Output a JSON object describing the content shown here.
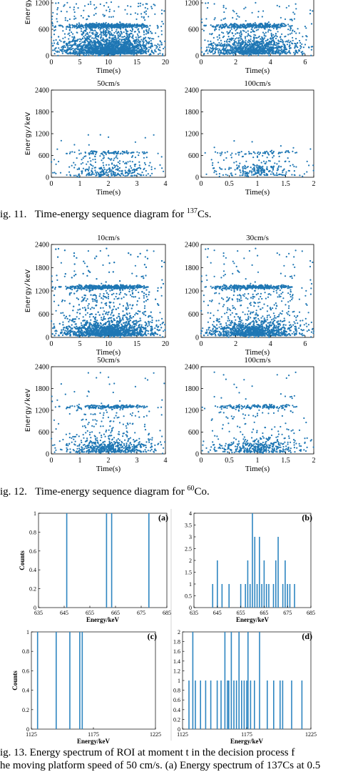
{
  "figures": [
    {
      "caption": {
        "prefix": "ig. 11.",
        "text": "Time-energy sequence diagram for ",
        "isotope_sup": "137",
        "isotope": "Cs."
      },
      "panels": [
        {
          "title": "",
          "xlabel": "Time(s)",
          "ylabel": "Energy/keV",
          "xticks": [
            "0",
            "5",
            "10",
            "15",
            "20"
          ],
          "yticks": [
            "0",
            "600",
            "1200"
          ],
          "xlim": [
            0,
            20
          ],
          "ylim": [
            0,
            2400
          ]
        },
        {
          "title": "",
          "xlabel": "Time(s)",
          "ylabel": "",
          "xticks": [
            "0",
            "2",
            "4",
            "6"
          ],
          "yticks": [
            "0",
            "600",
            "1200"
          ],
          "xlim": [
            0,
            6.5
          ],
          "ylim": [
            0,
            2400
          ]
        },
        {
          "title": "50cm/s",
          "xlabel": "Time(s)",
          "ylabel": "Energy/keV",
          "xticks": [
            "0",
            "1",
            "2",
            "3",
            "4"
          ],
          "yticks": [
            "0",
            "600",
            "1200",
            "1800",
            "2400"
          ],
          "xlim": [
            0,
            4
          ],
          "ylim": [
            0,
            2400
          ]
        },
        {
          "title": "100cm/s",
          "xlabel": "Time(s)",
          "ylabel": "",
          "xticks": [
            "0",
            "0.5",
            "1",
            "1.5",
            "2"
          ],
          "yticks": [
            "0",
            "600",
            "1200",
            "1800",
            "2400"
          ],
          "xlim": [
            0,
            2
          ],
          "ylim": [
            0,
            2400
          ]
        }
      ]
    },
    {
      "caption": {
        "prefix": "ig. 12.",
        "text": "Time-energy sequence diagram for ",
        "isotope_sup": "60",
        "isotope": "Co."
      },
      "panels": [
        {
          "title": "10cm/s",
          "xlabel": "Time(s)",
          "ylabel": "Energy/keV",
          "xticks": [
            "0",
            "5",
            "10",
            "15",
            "20"
          ],
          "yticks": [
            "0",
            "600",
            "1200",
            "1800",
            "2400"
          ],
          "xlim": [
            0,
            20
          ],
          "ylim": [
            0,
            2400
          ]
        },
        {
          "title": "30cm/s",
          "xlabel": "Time(s)",
          "ylabel": "",
          "xticks": [
            "0",
            "2",
            "4",
            "6"
          ],
          "yticks": [
            "0",
            "600",
            "1200",
            "1800",
            "2400"
          ],
          "xlim": [
            0,
            6.5
          ],
          "ylim": [
            0,
            2400
          ]
        },
        {
          "title": "50cm/s",
          "xlabel": "Time(s)",
          "ylabel": "Energy/keV",
          "xticks": [
            "0",
            "1",
            "2",
            "3",
            "4"
          ],
          "yticks": [
            "0",
            "600",
            "1200",
            "1800",
            "2400"
          ],
          "xlim": [
            0,
            4
          ],
          "ylim": [
            0,
            2400
          ]
        },
        {
          "title": "100cm/s",
          "xlabel": "Time(s)",
          "ylabel": "",
          "xticks": [
            "0",
            "0.5",
            "1",
            "1.5",
            "2"
          ],
          "yticks": [
            "0",
            "600",
            "1200",
            "1800",
            "2400"
          ],
          "xlim": [
            0,
            2
          ],
          "ylim": [
            0,
            2400
          ]
        }
      ]
    }
  ],
  "spectra": {
    "caption_line1": "ig. 13.   Energy spectrum of ROI at moment t in the decision process f",
    "caption_line2": "he moving platform speed of 50 cm/s. (a) Energy spectrum of 137Cs at 0.5",
    "panels": [
      {
        "tag": "(a)",
        "xlabel": "Energy/keV",
        "ylabel": "Counts",
        "xticks": [
          "635",
          "645",
          "655",
          "665",
          "675",
          "685"
        ],
        "yticks": [
          "0",
          "0.2",
          "0.4",
          "0.6",
          "0.8",
          "1"
        ],
        "xlim": [
          635,
          685
        ],
        "ylim": [
          0,
          1
        ],
        "lines": [
          [
            646,
            1
          ],
          [
            661.5,
            1
          ],
          [
            663.5,
            1
          ],
          [
            678,
            1
          ]
        ]
      },
      {
        "tag": "(b)",
        "xlabel": "Energy/keV",
        "ylabel": "",
        "xticks": [
          "635",
          "645",
          "655",
          "665",
          "675",
          "685"
        ],
        "yticks": [
          "0",
          "0.5",
          "1",
          "1.5",
          "2",
          "2.5",
          "3",
          "3.5",
          "4"
        ],
        "xlim": [
          635,
          685
        ],
        "ylim": [
          0,
          4
        ],
        "lines": [
          [
            643,
            1
          ],
          [
            645,
            2
          ],
          [
            647,
            1
          ],
          [
            650,
            1
          ],
          [
            655,
            1
          ],
          [
            657,
            1
          ],
          [
            658,
            2
          ],
          [
            659,
            1
          ],
          [
            660,
            4
          ],
          [
            661,
            3
          ],
          [
            662,
            1
          ],
          [
            663,
            3
          ],
          [
            664,
            1
          ],
          [
            665,
            2
          ],
          [
            666,
            1
          ],
          [
            667,
            1
          ],
          [
            669,
            1
          ],
          [
            670,
            2
          ],
          [
            671,
            3
          ],
          [
            673,
            1
          ],
          [
            674,
            2
          ],
          [
            675,
            1
          ],
          [
            676,
            1
          ],
          [
            678,
            1
          ]
        ]
      },
      {
        "tag": "(c)",
        "xlabel": "Energy/keV",
        "ylabel": "Counts",
        "xticks": [
          "1125",
          "1175",
          "1225"
        ],
        "yticks": [
          "0",
          "0.2",
          "0.4",
          "0.6",
          "0.8",
          "1"
        ],
        "xlim": [
          1125,
          1225
        ],
        "ylim": [
          0,
          1
        ],
        "lines": [
          [
            1130,
            1
          ],
          [
            1145,
            1
          ],
          [
            1156,
            1
          ],
          [
            1164,
            1
          ],
          [
            1166,
            1
          ]
        ]
      },
      {
        "tag": "(d)",
        "xlabel": "Energy/keV",
        "ylabel": "",
        "xticks": [
          "1125",
          "1175",
          "1225"
        ],
        "yticks": [
          "0",
          "0.2",
          "0.4",
          "0.6",
          "0.8",
          "1",
          "1.2",
          "1.4",
          "1.6",
          "1.8",
          "2"
        ],
        "xlim": [
          1125,
          1225
        ],
        "ylim": [
          0,
          2
        ],
        "lines": [
          [
            1130,
            1
          ],
          [
            1133,
            2
          ],
          [
            1135,
            1
          ],
          [
            1139,
            1
          ],
          [
            1143,
            1
          ],
          [
            1147,
            1
          ],
          [
            1152,
            1
          ],
          [
            1155,
            1
          ],
          [
            1158,
            2
          ],
          [
            1160,
            1
          ],
          [
            1161,
            1
          ],
          [
            1163,
            2
          ],
          [
            1165,
            1
          ],
          [
            1167,
            1
          ],
          [
            1169,
            2
          ],
          [
            1171,
            1
          ],
          [
            1173,
            1
          ],
          [
            1175,
            1
          ],
          [
            1176,
            2
          ],
          [
            1178,
            1
          ],
          [
            1181,
            1
          ],
          [
            1185,
            2
          ],
          [
            1191,
            1
          ],
          [
            1196,
            1
          ],
          [
            1201,
            1
          ],
          [
            1203,
            1
          ],
          [
            1210,
            1
          ],
          [
            1218,
            1
          ]
        ]
      }
    ]
  },
  "colors": {
    "marker": "#1f77b4",
    "bar": "#2e86c1"
  }
}
